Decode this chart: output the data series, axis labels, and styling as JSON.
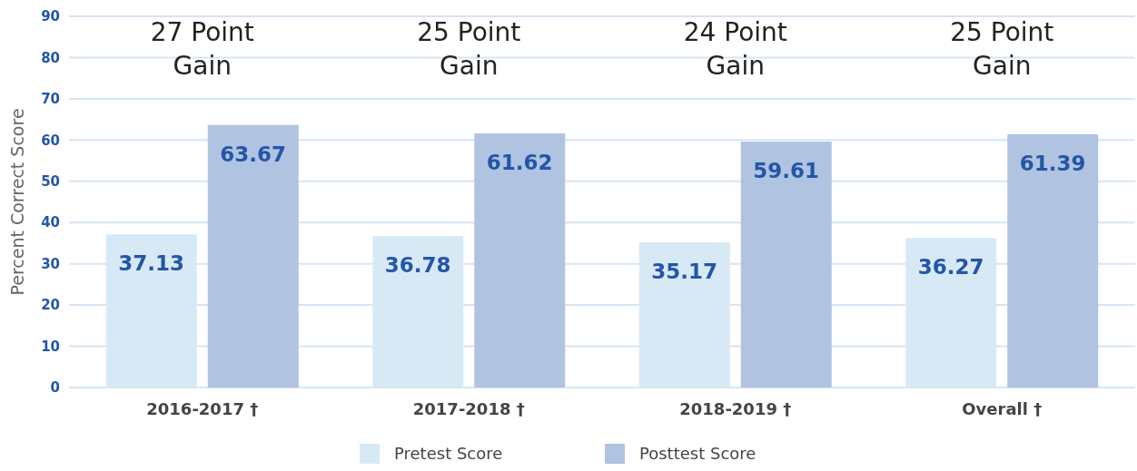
{
  "chart_data": {
    "type": "bar",
    "ylabel": "Percent Correct Score",
    "categories": [
      "2016-2017 †",
      "2017-2018 †",
      "2018-2019 †",
      "Overall †"
    ],
    "series": [
      {
        "name": "Pretest Score",
        "color": "#d8e9f6",
        "values": [
          37.13,
          36.78,
          35.17,
          36.27
        ]
      },
      {
        "name": "Posttest Score",
        "color": "#b0c3e1",
        "values": [
          63.67,
          61.62,
          59.61,
          61.39
        ]
      }
    ],
    "ylim": [
      0,
      90
    ],
    "yticks": [
      0,
      10,
      20,
      30,
      40,
      50,
      60,
      70,
      80,
      90
    ],
    "grid": "y",
    "legend": "bottom",
    "data_labels": true,
    "annotations": [
      "27 Point Gain",
      "25 Point Gain",
      "24 Point Gain",
      "25 Point Gain"
    ]
  }
}
